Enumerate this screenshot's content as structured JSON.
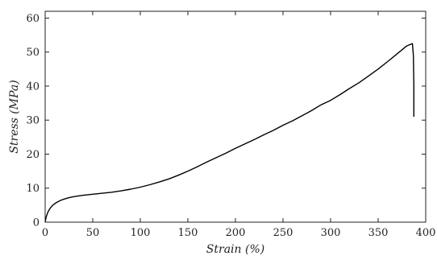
{
  "chart_data": {
    "type": "line",
    "title": "",
    "xlabel": "Strain (%)",
    "ylabel": "Stress (MPa)",
    "xlim": [
      0,
      400
    ],
    "ylim": [
      0,
      62
    ],
    "x_ticks": [
      0,
      50,
      100,
      150,
      200,
      250,
      300,
      350,
      400
    ],
    "y_ticks": [
      0,
      10,
      20,
      30,
      40,
      50,
      60
    ],
    "grid": false,
    "legend": "none",
    "series": [
      {
        "x": [
          0,
          1,
          3,
          5,
          8,
          12,
          16,
          20,
          25,
          30,
          40,
          50,
          60,
          70,
          80,
          90,
          100,
          110,
          120,
          130,
          140,
          150,
          160,
          170,
          180,
          190,
          200,
          210,
          220,
          230,
          240,
          250,
          260,
          270,
          280,
          290,
          300,
          310,
          320,
          330,
          340,
          350,
          360,
          370,
          380,
          386,
          387,
          387.5,
          387.5
        ],
        "y": [
          0,
          1.5,
          3.0,
          4.0,
          5.0,
          5.8,
          6.4,
          6.8,
          7.2,
          7.5,
          7.9,
          8.2,
          8.5,
          8.8,
          9.2,
          9.7,
          10.3,
          11.0,
          11.8,
          12.7,
          13.8,
          15.0,
          16.3,
          17.7,
          19.0,
          20.3,
          21.7,
          23.0,
          24.3,
          25.7,
          27.0,
          28.5,
          29.8,
          31.3,
          32.8,
          34.5,
          35.8,
          37.5,
          39.3,
          41.0,
          43.0,
          45.0,
          47.2,
          49.5,
          51.8,
          52.5,
          49.0,
          40.0,
          31.0
        ]
      }
    ]
  }
}
